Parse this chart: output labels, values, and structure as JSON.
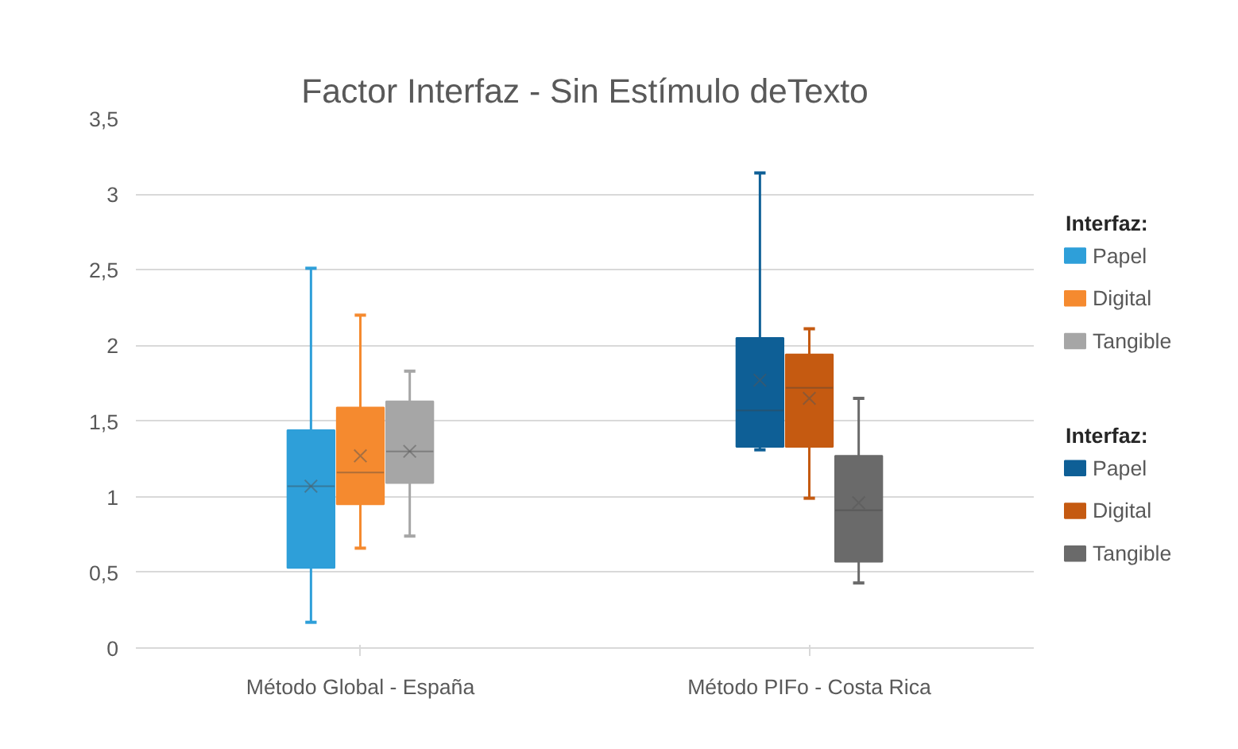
{
  "chart_data": {
    "type": "box",
    "title": "Factor Interfaz - Sin Estímulo deTexto",
    "legend_title": "Interfaz:",
    "categories": [
      "Método Global - España",
      "Método PIFo - Costa Rica"
    ],
    "ylim": [
      0,
      3.5
    ],
    "yticks": [
      0,
      {
        "value": 0.5,
        "label": "0,5"
      },
      1,
      {
        "value": 1.5,
        "label": "1,5"
      },
      2,
      {
        "value": 2.5,
        "label": "2,5"
      },
      3,
      {
        "value": 3.5,
        "label": "3,5"
      }
    ],
    "grid": "y",
    "legend": "right",
    "marker": "cross",
    "series": [
      {
        "name": "Papel",
        "color": "#2e9fd9",
        "boxes": [
          {
            "low": 0.17,
            "q1": 0.53,
            "median": 1.07,
            "q3": 1.44,
            "high": 2.51,
            "mean": 1.07
          },
          null
        ]
      },
      {
        "name": "Digital",
        "color": "#f58a2f",
        "boxes": [
          {
            "low": 0.66,
            "q1": 0.95,
            "median": 1.16,
            "q3": 1.59,
            "high": 2.2,
            "mean": 1.27
          },
          null
        ]
      },
      {
        "name": "Tangible",
        "color": "#a6a6a6",
        "boxes": [
          {
            "low": 0.74,
            "q1": 1.09,
            "median": 1.3,
            "q3": 1.63,
            "high": 1.83,
            "mean": 1.3
          },
          null
        ]
      },
      {
        "name": "Papel",
        "color": "#0e5f96",
        "boxes": [
          null,
          {
            "low": 1.31,
            "q1": 1.33,
            "median": 1.57,
            "q3": 2.05,
            "high": 3.14,
            "mean": 1.77
          }
        ]
      },
      {
        "name": "Digital",
        "color": "#c55a11",
        "boxes": [
          null,
          {
            "low": 0.99,
            "q1": 1.33,
            "median": 1.72,
            "q3": 1.94,
            "high": 2.11,
            "mean": 1.65
          }
        ]
      },
      {
        "name": "Tangible",
        "color": "#6a6a6a",
        "boxes": [
          null,
          {
            "low": 0.43,
            "q1": 0.57,
            "median": 0.91,
            "q3": 1.27,
            "high": 1.65,
            "mean": 0.96
          }
        ]
      }
    ]
  }
}
